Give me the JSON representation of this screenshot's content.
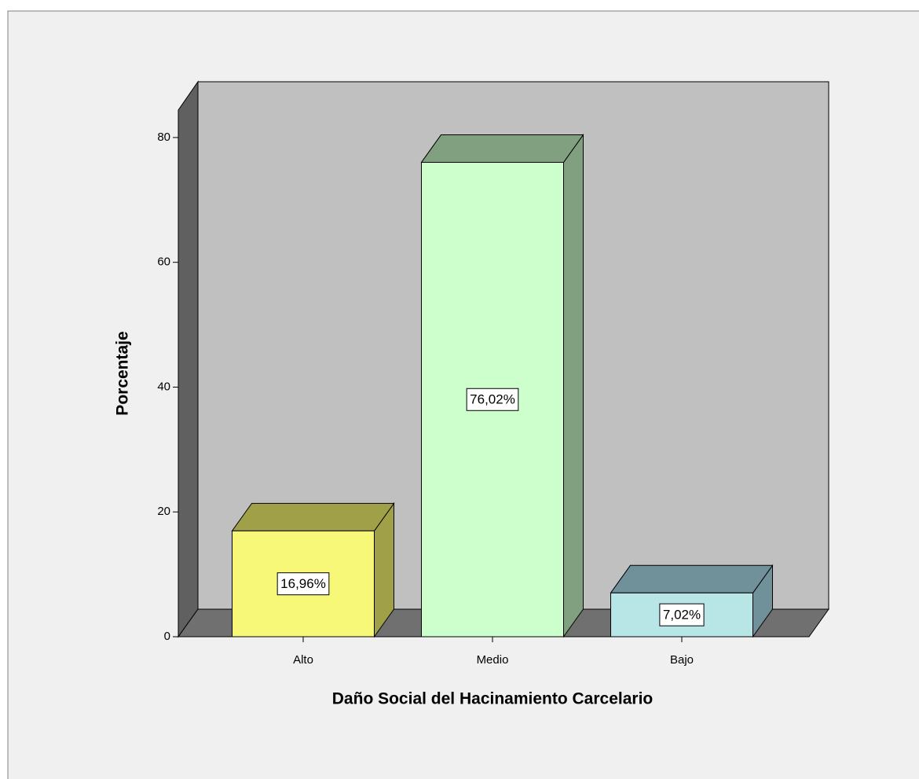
{
  "chart_data": {
    "type": "bar3d",
    "x_label": "Daño Social del Hacinamiento Carcelario",
    "y_label": "Porcentaje",
    "categories": [
      "Alto",
      "Medio",
      "Bajo"
    ],
    "values": [
      16.96,
      76.02,
      7.02
    ],
    "value_labels": [
      "16,96%",
      "76,02%",
      "7,02%"
    ],
    "colors": [
      "#f8f878",
      "#ccffcc",
      "#b8e6e6"
    ],
    "shade_colors": [
      "#a0a048",
      "#80a080",
      "#70909a"
    ],
    "ylim": [
      0,
      84.4
    ],
    "yticks": [
      0,
      20,
      40,
      60,
      80
    ]
  }
}
